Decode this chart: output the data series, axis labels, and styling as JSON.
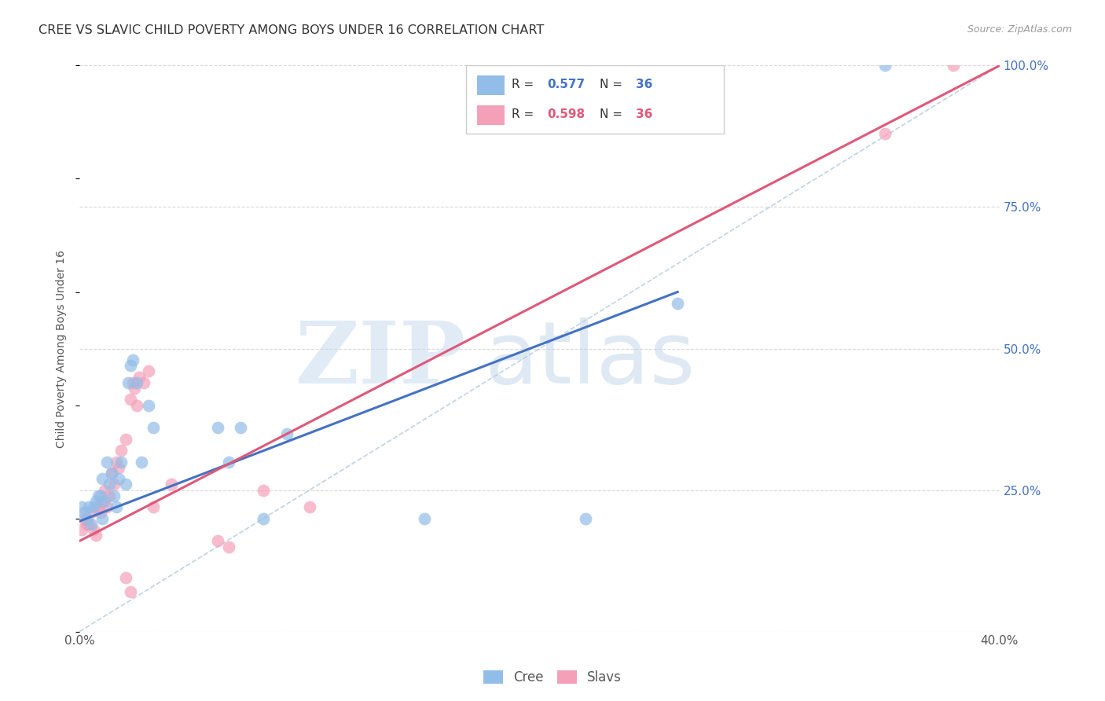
{
  "title": "CREE VS SLAVIC CHILD POVERTY AMONG BOYS UNDER 16 CORRELATION CHART",
  "source": "Source: ZipAtlas.com",
  "ylabel": "Child Poverty Among Boys Under 16",
  "xmin": 0.0,
  "xmax": 0.4,
  "ymin": 0.0,
  "ymax": 1.0,
  "legend_r_cree": "0.577",
  "legend_n_cree": "36",
  "legend_r_slavs": "0.598",
  "legend_n_slavs": "36",
  "cree_color": "#92bde8",
  "slavs_color": "#f4a0b8",
  "line_cree_color": "#4472c4",
  "line_slavs_color": "#e05878",
  "ref_line_color": "#b0c8dc",
  "cree_x": [
    0.001,
    0.002,
    0.003,
    0.004,
    0.005,
    0.006,
    0.007,
    0.008,
    0.009,
    0.01,
    0.01,
    0.011,
    0.012,
    0.013,
    0.014,
    0.015,
    0.016,
    0.017,
    0.018,
    0.02,
    0.021,
    0.022,
    0.023,
    0.025,
    0.027,
    0.03,
    0.032,
    0.06,
    0.065,
    0.07,
    0.08,
    0.09,
    0.15,
    0.22,
    0.26,
    0.35
  ],
  "cree_y": [
    0.22,
    0.21,
    0.2,
    0.22,
    0.19,
    0.22,
    0.23,
    0.24,
    0.24,
    0.2,
    0.27,
    0.23,
    0.3,
    0.26,
    0.28,
    0.24,
    0.22,
    0.27,
    0.3,
    0.26,
    0.44,
    0.47,
    0.48,
    0.44,
    0.3,
    0.4,
    0.36,
    0.36,
    0.3,
    0.36,
    0.2,
    0.35,
    0.2,
    0.2,
    0.58,
    1.0
  ],
  "slavs_x": [
    0.001,
    0.002,
    0.003,
    0.004,
    0.005,
    0.006,
    0.007,
    0.008,
    0.009,
    0.01,
    0.011,
    0.012,
    0.013,
    0.014,
    0.015,
    0.016,
    0.017,
    0.018,
    0.02,
    0.022,
    0.023,
    0.024,
    0.025,
    0.026,
    0.028,
    0.03,
    0.032,
    0.04,
    0.06,
    0.065,
    0.08,
    0.1,
    0.02,
    0.022,
    0.35,
    0.38
  ],
  "slavs_y": [
    0.18,
    0.2,
    0.19,
    0.19,
    0.21,
    0.18,
    0.17,
    0.22,
    0.21,
    0.23,
    0.25,
    0.22,
    0.24,
    0.28,
    0.26,
    0.3,
    0.29,
    0.32,
    0.34,
    0.41,
    0.44,
    0.43,
    0.4,
    0.45,
    0.44,
    0.46,
    0.22,
    0.26,
    0.16,
    0.15,
    0.25,
    0.22,
    0.095,
    0.07,
    0.88,
    1.0
  ],
  "cree_line_x": [
    0.0,
    0.26
  ],
  "cree_line_y": [
    0.195,
    0.6
  ],
  "slavs_line_x": [
    0.0,
    0.4
  ],
  "slavs_line_y": [
    0.16,
    1.0
  ],
  "ref_line_x": [
    0.0,
    0.4
  ],
  "ref_line_y": [
    0.0,
    1.0
  ],
  "background_color": "#ffffff",
  "grid_color": "#d8d8d8"
}
